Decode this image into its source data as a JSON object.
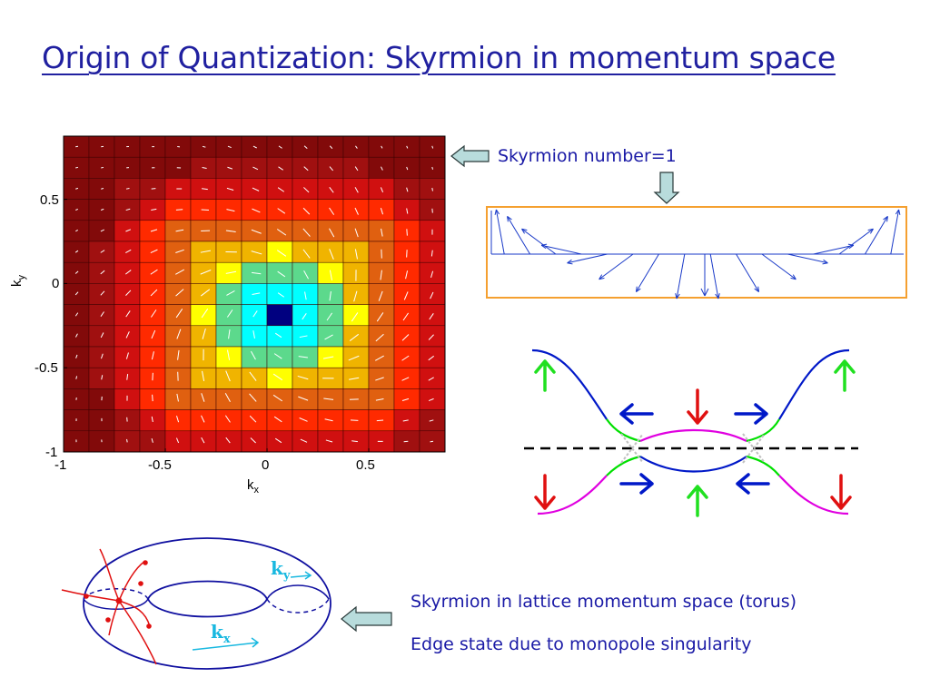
{
  "title": "Origin of Quantization: Skyrmion in momentum space",
  "captions": {
    "skyrmion_number": "Skyrmion number=1",
    "torus_caption": "Skyrmion in lattice momentum space (torus)",
    "edge_caption": "Edge state due to monopole singularity"
  },
  "torus_labels": {
    "ky": "k",
    "ky_sub": "y",
    "kx": "k",
    "kx_sub": "x"
  },
  "chart_data": {
    "type": "heatmap",
    "title": "",
    "xlabel": "k",
    "xlabel_sub": "x",
    "ylabel": "k",
    "ylabel_sub": "y",
    "xlim": [
      -1,
      0.875
    ],
    "ylim": [
      -1,
      0.875
    ],
    "xticks": [
      "-1",
      "-0.5",
      "0",
      "0.5"
    ],
    "yticks": [
      "0.5",
      "0",
      "-0.5",
      "-1"
    ],
    "grid_size": 15,
    "center_cell": [
      8,
      8
    ],
    "colormap": [
      "#000080",
      "#00ffff",
      "#5cd98c",
      "#ffff00",
      "#f0b400",
      "#e06010",
      "#ff2a00",
      "#d01010",
      "#a01010",
      "#820a0a"
    ],
    "vector_field": "in-plane projection of d(k), winding once around the center"
  },
  "colors": {
    "title": "#2020a0",
    "caption": "#1a1aa6",
    "orange_box": "#f5a030",
    "blue_curve": "#0018c8",
    "magenta_curve": "#e000e0",
    "green_curve": "#00e000",
    "red_arrow": "#e01010",
    "green_arrow": "#20e020",
    "hollow_arrow_fill": "#b8dcdc"
  }
}
